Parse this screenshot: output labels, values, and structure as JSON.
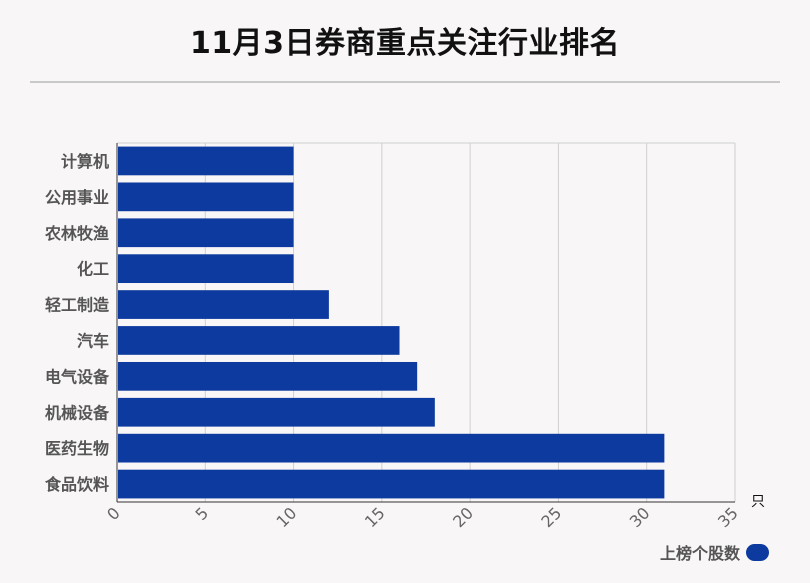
{
  "title": "11月3日券商重点关注行业排名",
  "chart_data": {
    "type": "bar",
    "orientation": "horizontal",
    "categories": [
      "计算机",
      "公用事业",
      "农林牧渔",
      "化工",
      "轻工制造",
      "汽车",
      "电气设备",
      "机械设备",
      "医药生物",
      "食品饮料"
    ],
    "series": [
      {
        "name": "上榜个股数",
        "values": [
          10,
          10,
          10,
          10,
          12,
          16,
          17,
          18,
          31,
          31
        ]
      }
    ],
    "x_ticks": [
      0,
      5,
      10,
      15,
      20,
      25,
      30,
      35
    ],
    "xlim": [
      0,
      35
    ],
    "x_unit": "只",
    "grid": true,
    "legend_position": "bottom-right",
    "colors": {
      "bar": "#0d3a9e"
    }
  }
}
